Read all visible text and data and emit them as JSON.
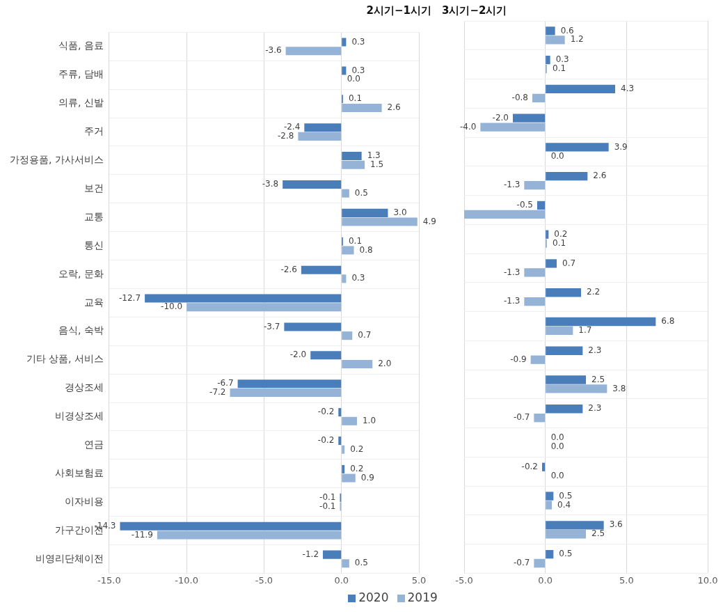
{
  "chart_data": [
    {
      "type": "bar",
      "orientation": "horizontal",
      "title": "2시기−1시기",
      "categories": [
        "식품, 음료",
        "주류, 담배",
        "의류, 신발",
        "주거",
        "가정용품, 가사서비스",
        "보건",
        "교통",
        "통신",
        "오락, 문화",
        "교육",
        "음식, 숙박",
        "기타 상품, 서비스",
        "경상조세",
        "비경상조세",
        "연금",
        "사회보험료",
        "이자비용",
        "가구간이전",
        "비영리단체이전"
      ],
      "series": [
        {
          "name": "2020",
          "color": "#4a7ebb",
          "values": [
            0.3,
            0.3,
            0.1,
            -2.4,
            1.3,
            -3.8,
            3.0,
            0.1,
            -2.6,
            -12.7,
            -3.7,
            -2.0,
            -6.7,
            -0.2,
            -0.2,
            0.2,
            -0.1,
            -14.3,
            -1.2
          ],
          "value_labels": [
            "0.3",
            "0.3",
            "0.1",
            "-2.4",
            "1.3",
            "-3.8",
            "3.0",
            "0.1",
            "-2.6",
            "-12.7",
            "-3.7",
            "-2.0",
            "-6.7",
            "-0.2",
            "-0.2",
            "0.2",
            "-0.1",
            "-14.3",
            "-1.2"
          ]
        },
        {
          "name": "2019",
          "color": "#95b3d7",
          "values": [
            -3.6,
            0.0,
            2.6,
            -2.8,
            1.5,
            0.5,
            4.9,
            0.8,
            0.3,
            -10.0,
            0.7,
            2.0,
            -7.2,
            1.0,
            0.2,
            0.9,
            -0.1,
            -11.9,
            0.5
          ],
          "value_labels": [
            "-3.6",
            "0.0",
            "2.6",
            "-2.8",
            "1.5",
            "0.5",
            "4.9",
            "0.8",
            "0.3",
            "-10.0",
            "0.7",
            "2.0",
            "-7.2",
            "1.0",
            "0.2",
            "0.9",
            "-0.1",
            "-11.9",
            "0.5"
          ]
        }
      ],
      "xlim": [
        -15,
        5
      ],
      "xticks": [
        {
          "value": -15,
          "label": "-15.0"
        },
        {
          "value": -10,
          "label": "-10.0"
        },
        {
          "value": -5,
          "label": "-5.0"
        },
        {
          "value": 0,
          "label": "0.0"
        },
        {
          "value": 5,
          "label": "5.0"
        }
      ],
      "grid": true,
      "legend": "bottom"
    },
    {
      "type": "bar",
      "orientation": "horizontal",
      "title": "3시기−2시기",
      "series": [
        {
          "name": "2020",
          "color": "#4a7ebb",
          "values": [
            0.6,
            0.3,
            4.3,
            -2.0,
            3.9,
            2.6,
            -0.5,
            0.2,
            0.7,
            2.2,
            6.8,
            2.3,
            2.5,
            2.3,
            0.0,
            -0.2,
            0.5,
            3.6,
            0.5
          ],
          "value_labels": [
            "0.6",
            "0.3",
            "4.3",
            "-2.0",
            "3.9",
            "2.6",
            "-0.5",
            "0.2",
            "0.7",
            "2.2",
            "6.8",
            "2.3",
            "2.5",
            "2.3",
            "0.0",
            "-0.2",
            "0.5",
            "3.6",
            "0.5"
          ]
        },
        {
          "name": "2019",
          "color": "#95b3d7",
          "values": [
            1.2,
            0.1,
            -0.8,
            -4.0,
            0.0,
            -1.3,
            -5.0,
            0.1,
            -1.3,
            -1.3,
            1.7,
            -0.9,
            3.8,
            -0.7,
            0.0,
            0.0,
            0.4,
            2.5,
            -0.7
          ],
          "value_labels": [
            "1.2",
            "0.1",
            "-0.8",
            "-4.0",
            "0.0",
            "-1.3",
            null,
            "0.1",
            "-1.3",
            "-1.3",
            "1.7",
            "-0.9",
            "3.8",
            "-0.7",
            "0.0",
            "0.0",
            "0.4",
            "2.5",
            "-0.7"
          ]
        }
      ],
      "xlim": [
        -5,
        10
      ],
      "xticks": [
        {
          "value": -5,
          "label": "-5.0"
        },
        {
          "value": 0,
          "label": "0.0"
        },
        {
          "value": 5,
          "label": "5.0"
        },
        {
          "value": 10,
          "label": "10.0"
        }
      ],
      "grid": true,
      "tick_labels": "x"
    }
  ]
}
